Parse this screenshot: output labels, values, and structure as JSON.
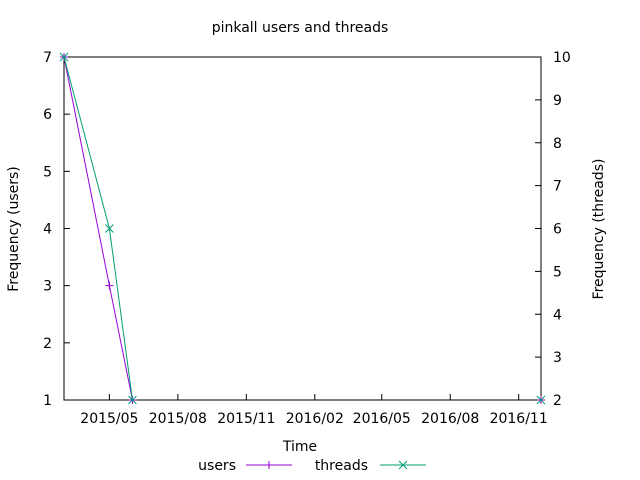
{
  "chart_data": {
    "type": "line",
    "title": "pinkall users and threads",
    "xlabel": "Time",
    "ylabel": "Frequency (users)",
    "y2label": "Frequency (threads)",
    "x_ticks": [
      "2015/05",
      "2015/08",
      "2015/11",
      "2016/02",
      "2016/05",
      "2016/08",
      "2016/11"
    ],
    "xlim": [
      "2015-03-01",
      "2016-12-01"
    ],
    "ylim": [
      1,
      7
    ],
    "y_ticks": [
      1,
      2,
      3,
      4,
      5,
      6,
      7
    ],
    "y2lim": [
      2,
      10
    ],
    "y2_ticks": [
      2,
      3,
      4,
      5,
      6,
      7,
      8,
      9,
      10
    ],
    "grid": false,
    "legend_position": "bottom-center",
    "series": [
      {
        "name": "users",
        "axis": "left",
        "color": "#9400d3",
        "marker": "plus",
        "x": [
          "2015-03-01",
          "2015-05-01",
          "2015-06-01"
        ],
        "y": [
          7,
          3,
          1
        ],
        "extra_points": [
          {
            "x": "2016-12-01",
            "y": 1
          }
        ]
      },
      {
        "name": "threads",
        "axis": "right",
        "color": "#009e73",
        "marker": "cross",
        "x": [
          "2015-03-01",
          "2015-05-01",
          "2015-06-01"
        ],
        "y": [
          10,
          6,
          2
        ],
        "extra_points": [
          {
            "x": "2016-12-01",
            "y": 2
          }
        ]
      }
    ]
  }
}
